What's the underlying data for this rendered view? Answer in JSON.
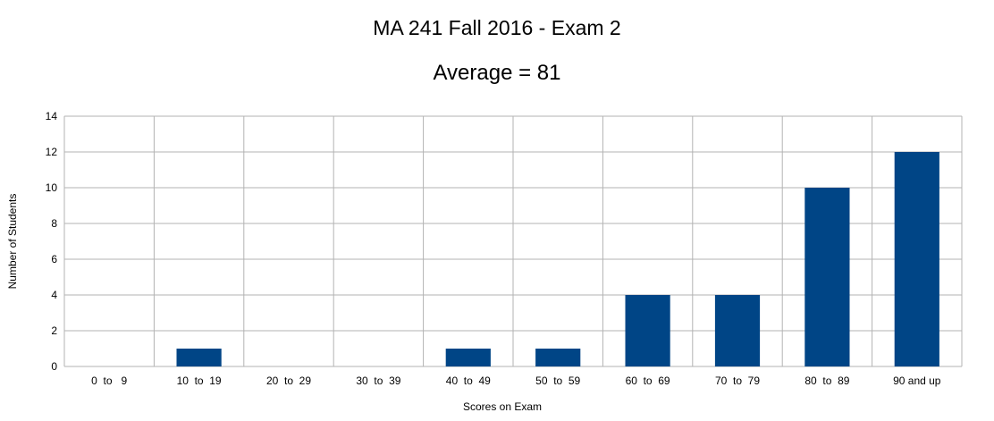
{
  "chart_data": {
    "type": "bar",
    "title": "MA 241 Fall 2016 - Exam 2",
    "subtitle": "Average = 81",
    "xlabel": "Scores on Exam",
    "ylabel": "Number of Students",
    "categories": [
      "0  to   9",
      "10  to  19",
      "20  to  29",
      "30  to  39",
      "40  to  49",
      "50  to  59",
      "60  to  69",
      "70  to  79",
      "80  to  89",
      "90 and up"
    ],
    "values": [
      0,
      1,
      0,
      0,
      1,
      1,
      4,
      4,
      10,
      12
    ],
    "ylim": [
      0,
      14
    ],
    "yticks": [
      0,
      2,
      4,
      6,
      8,
      10,
      12,
      14
    ],
    "grid": true,
    "bar_color": "#004586",
    "grid_color": "#b3b3b3"
  }
}
